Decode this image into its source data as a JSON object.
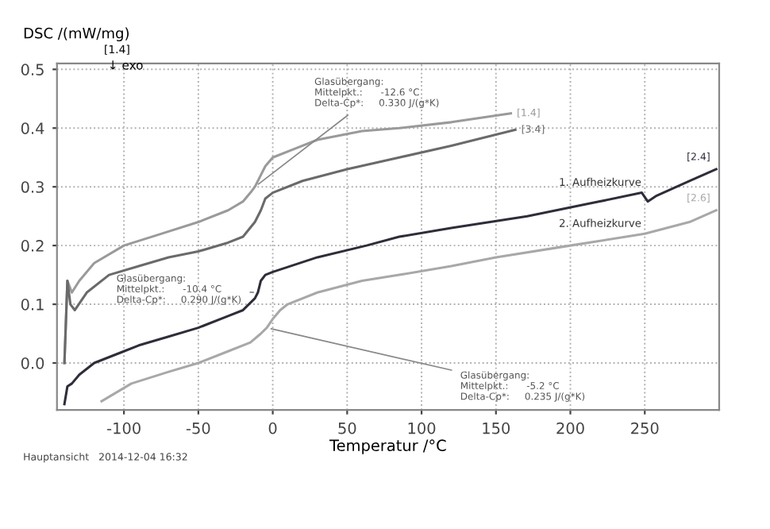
{
  "chart_data": {
    "type": "line",
    "xlabel": "Temperatur /°C",
    "ylabel": "DSC /(mW/mg)",
    "xlim": [
      -145,
      300
    ],
    "ylim": [
      -0.08,
      0.51
    ],
    "xticks": [
      -100,
      -50,
      0,
      50,
      100,
      150,
      200,
      250
    ],
    "yticks": [
      {
        "value": 0,
        "label": "0.0"
      },
      0.1,
      0.2,
      0.3,
      0.4,
      0.5
    ],
    "grid": true,
    "line_style": "solid",
    "marker": "none",
    "series": [
      {
        "name": "[1.4]",
        "color": "#9a9a9a",
        "x": [
          -140,
          -138,
          -135,
          -130,
          -120,
          -100,
          -75,
          -50,
          -30,
          -20,
          -15,
          -12,
          -8,
          -5,
          0,
          15,
          30,
          60,
          85,
          120,
          160
        ],
        "values": [
          0.0,
          0.14,
          0.12,
          0.14,
          0.17,
          0.2,
          0.22,
          0.24,
          0.26,
          0.275,
          0.29,
          0.3,
          0.32,
          0.335,
          0.35,
          0.365,
          0.38,
          0.395,
          0.4,
          0.41,
          0.425
        ]
      },
      {
        "name": "[3.4]",
        "color": "#6a6a6a",
        "x": [
          -140,
          -138,
          -136,
          -133,
          -125,
          -110,
          -90,
          -70,
          -50,
          -30,
          -20,
          -12,
          -8,
          -5,
          0,
          20,
          50,
          85,
          120,
          163
        ],
        "values": [
          0.0,
          0.14,
          0.1,
          0.09,
          0.12,
          0.15,
          0.165,
          0.18,
          0.19,
          0.205,
          0.215,
          0.24,
          0.26,
          0.28,
          0.29,
          0.31,
          0.33,
          0.35,
          0.37,
          0.397
        ]
      },
      {
        "name": "[2.4]",
        "color": "#2e2e3a",
        "x": [
          -140,
          -138,
          -135,
          -130,
          -120,
          -100,
          -90,
          -70,
          -50,
          -30,
          -20,
          -12,
          -10,
          -8,
          -5,
          0,
          30,
          63,
          85,
          120,
          171,
          210,
          248,
          252,
          258,
          280,
          298
        ],
        "values": [
          -0.07,
          -0.04,
          -0.035,
          -0.02,
          0.0,
          0.02,
          0.03,
          0.045,
          0.06,
          0.08,
          0.09,
          0.11,
          0.12,
          0.14,
          0.15,
          0.155,
          0.18,
          0.2,
          0.215,
          0.23,
          0.25,
          0.27,
          0.29,
          0.275,
          0.285,
          0.31,
          0.33
        ]
      },
      {
        "name": "[2.6]",
        "color": "#a8a8a8",
        "x": [
          -115,
          -95,
          -70,
          -50,
          -30,
          -15,
          -8,
          -4,
          0,
          5,
          10,
          30,
          60,
          85,
          120,
          150,
          200,
          250,
          280,
          298
        ],
        "values": [
          -0.065,
          -0.035,
          -0.015,
          0.0,
          0.02,
          0.035,
          0.05,
          0.06,
          0.075,
          0.09,
          0.1,
          0.12,
          0.14,
          0.15,
          0.165,
          0.18,
          0.2,
          0.22,
          0.24,
          0.26
        ]
      }
    ],
    "annotations": [
      "[1.4]",
      "↓ exo",
      {
        "text": "Glasübergang:\nMittelpkt.:      -12.6 °C\nDelta-Cp*:     0.330 J/(g*K)",
        "x": -12,
        "y": 0.3
      },
      {
        "text": "Glasübergang:\nMittelpkt.:      -10.4 °C\nDelta-Cp*:     0.290 J/(g*K)",
        "x": -10,
        "y": 0.12
      },
      {
        "text": "Glasübergang:\nMittelpkt.:      -5.2 °C\nDelta-Cp*:     0.235 J/(g*K)",
        "x": -4,
        "y": 0.06
      },
      {
        "text": "1. Aufheizkurve",
        "x": 250,
        "y": 0.29
      },
      {
        "text": "2. Aufheizkurve",
        "x": 250,
        "y": 0.22
      },
      "Hauptansicht   2014-12-04 16:32"
    ]
  }
}
